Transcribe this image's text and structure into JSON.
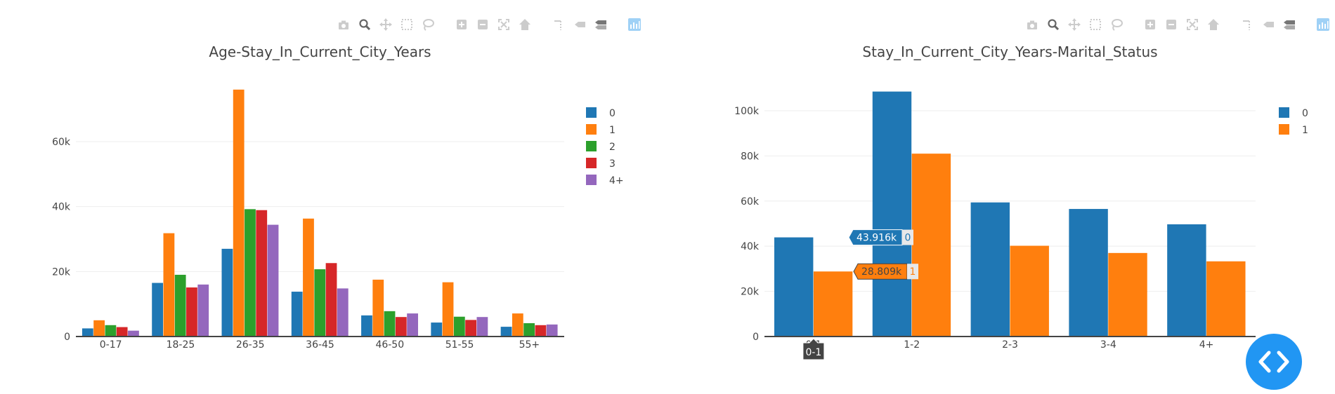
{
  "colors": {
    "c0": "#1f77b4",
    "c1": "#ff7f0e",
    "c2": "#2ca02c",
    "c3": "#d62728",
    "c4": "#9467bd"
  },
  "modebar_icons": [
    "camera-icon",
    "zoom-icon",
    "pan-icon",
    "box-select-icon",
    "lasso-icon",
    "zoom-in-icon",
    "zoom-out-icon",
    "autoscale-icon",
    "reset-axes-icon",
    "toggle-spike-icon",
    "hover-closest-icon",
    "hover-compare-icon",
    "plotly-logo-icon"
  ],
  "chart_data": [
    {
      "type": "bar",
      "title": "Age-Stay_In_Current_City_Years",
      "categories": [
        "0-17",
        "18-25",
        "26-35",
        "36-45",
        "46-50",
        "51-55",
        "55+"
      ],
      "series": [
        {
          "name": "0",
          "values": [
            2500,
            16500,
            27000,
            13800,
            6500,
            4300,
            3000
          ]
        },
        {
          "name": "1",
          "values": [
            5000,
            31800,
            76000,
            36300,
            17500,
            16700,
            7100
          ]
        },
        {
          "name": "2",
          "values": [
            3500,
            19000,
            39200,
            20700,
            7800,
            6100,
            4100
          ]
        },
        {
          "name": "3",
          "values": [
            2900,
            15100,
            38900,
            22600,
            6000,
            5100,
            3500
          ]
        },
        {
          "name": "4+",
          "values": [
            1800,
            16000,
            34400,
            14800,
            7100,
            6000,
            3700
          ]
        }
      ],
      "ylim": [
        0,
        82000
      ],
      "yticks": [
        0,
        20000,
        40000,
        60000
      ],
      "ytick_labels": [
        "0",
        "20k",
        "40k",
        "60k"
      ],
      "legend": "top-right",
      "grid": true
    },
    {
      "type": "bar",
      "title": "Stay_In_Current_City_Years-Marital_Status",
      "categories": [
        "0-1",
        "1-2",
        "2-3",
        "3-4",
        "4+"
      ],
      "series": [
        {
          "name": "0",
          "values": [
            43916,
            108500,
            59400,
            56500,
            49700
          ]
        },
        {
          "name": "1",
          "values": [
            28809,
            81000,
            40200,
            37000,
            33300
          ]
        }
      ],
      "ylim": [
        0,
        118000
      ],
      "yticks": [
        0,
        20000,
        40000,
        60000,
        80000,
        100000
      ],
      "ytick_labels": [
        "0",
        "20k",
        "40k",
        "60k",
        "80k",
        "100k"
      ],
      "legend": "top-right",
      "grid": true,
      "hover": {
        "category": "0-1",
        "labels": [
          {
            "value": "43.916k",
            "series": "0"
          },
          {
            "value": "28.809k",
            "series": "1"
          }
        ]
      }
    }
  ]
}
